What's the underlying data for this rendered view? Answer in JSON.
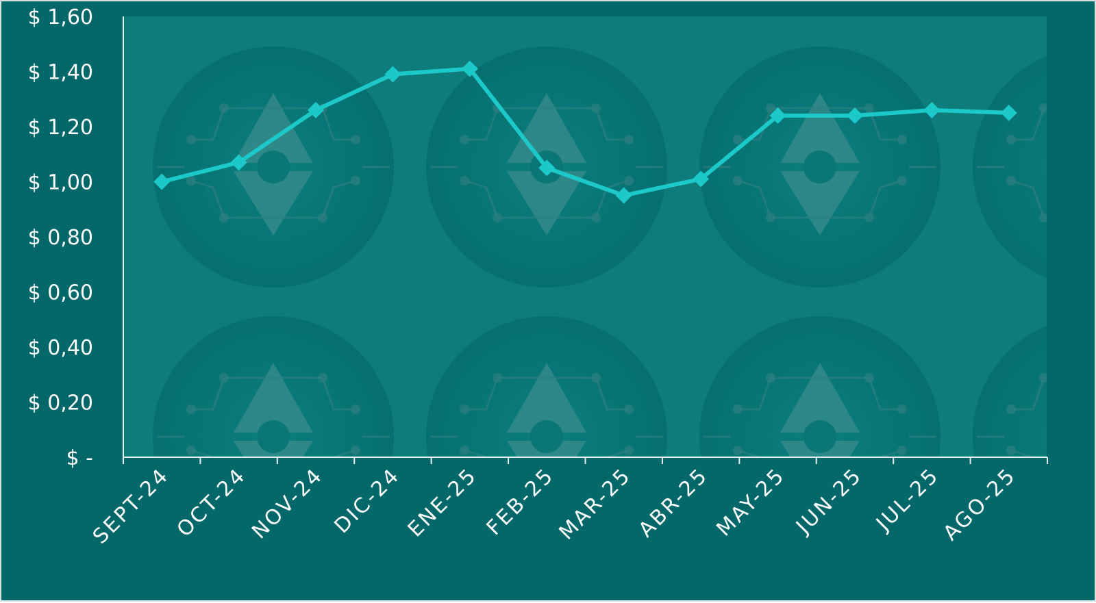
{
  "chart_data": {
    "type": "line",
    "title": "",
    "xlabel": "",
    "ylabel": "",
    "categories": [
      "SEPT-24",
      "OCT-24",
      "NOV-24",
      "DIC-24",
      "ENE-25",
      "FEB-25",
      "MAR-25",
      "ABR-25",
      "MAY-25",
      "JUN-25",
      "JUL-25",
      "AGO-25"
    ],
    "series": [
      {
        "values": [
          1.0,
          1.07,
          1.26,
          1.39,
          1.41,
          1.05,
          0.95,
          1.01,
          1.24,
          1.24,
          1.26,
          1.25
        ]
      }
    ],
    "ylim": [
      0,
      1.6
    ],
    "yticks": [
      0,
      0.2,
      0.4,
      0.6,
      0.8,
      1.0,
      1.2,
      1.4,
      1.6
    ],
    "ytick_labels": [
      "$ -",
      "$ 0,20",
      "$ 0,40",
      "$ 0,60",
      "$ 0,80",
      "$ 1,00",
      "$ 1,20",
      "$ 1,40",
      "$ 1,60"
    ],
    "grid": false,
    "legend": "none",
    "marker": "diamond",
    "colors": {
      "background": "#04676a",
      "plot_area": "#0e7c7b",
      "line": "#1cc9c8",
      "axis": "#e6f2f2",
      "text": "#ffffff",
      "watermark": "#3b8c8c"
    }
  }
}
